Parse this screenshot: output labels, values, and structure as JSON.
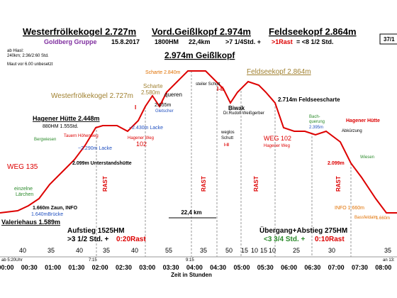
{
  "header": {
    "titles": [
      "Westerfrölkekogel 2.727m",
      "Vord.Geißlkopf 2.974m",
      "Feldseekopf 2.864m"
    ],
    "info": [
      "Goldberg Gruppe",
      "15.8.2017",
      "1800HM",
      "22,4km",
      ">7 1/4Std. +",
      ">1Rast",
      "= <8 1/2 Std."
    ],
    "page_number": "37/1"
  },
  "notes": [
    "ab Hiasl:",
    "240km; 2:36/2:60 Std.",
    "Maut vor 6.00 unbesetzt"
  ],
  "labels": [
    "2.974m Geißlkopf",
    "Scharte 2.840m",
    "Feldseekopf 2.864m",
    "Westerfrölkekogel 2.727m",
    "Scharte",
    "2.580m",
    "queren",
    "steiler Schutt",
    "I-II",
    "2.655m",
    "Gletscher",
    "2.714m  Feldseescharte",
    "Biwak",
    "Dr.Rudolf Weißgerber",
    "Hagener Hütte 2.448m",
    "880HM 1.55Std.",
    "~2.430m Lacke",
    "Hagener Weg",
    "102",
    "~2.290m Lacke",
    "Tauern Höhenweg",
    "Bergwiesen",
    "2.099m Unterstandshütte",
    "WEG 135",
    "einzelne",
    "Lärchen",
    "1.660m Zaun, INFO",
    "1.640mBrücke",
    "Valeriehaus 1.589m",
    "weglos",
    "Schutt",
    "I-II",
    "WEG 102",
    "Hagener Weg",
    "Bach-",
    "querung",
    "2.395m",
    "Hagener Hütte",
    "Abkürzung",
    "2.099m",
    "Wiesen",
    "INFO 1.660m",
    "Bassfeldalm",
    "1.660m",
    "I",
    "I"
  ],
  "rast": [
    "RAST",
    "RAST",
    "RAST",
    "RAST"
  ],
  "summary": {
    "distance": "22,4 km",
    "ascent": "Aufstieg 1525HM",
    "ascent_time": ">3 1/2 Std. +",
    "ascent_rest": "0:20Rast",
    "descent": "Übergang+Abstieg 275HM",
    "descent_time": "<3 3/4 Std. +",
    "descent_rest": "0:10Rast"
  },
  "durations": [
    40,
    35,
    40,
    35,
    40,
    55,
    35,
    50,
    15,
    10,
    15,
    10,
    25,
    30,
    35
  ],
  "clock": [
    "ab 5:20Uhr",
    "7:15",
    "9:15",
    "an 13:"
  ],
  "time_ticks": [
    "00:00",
    "00:30",
    "01:00",
    "01:30",
    "02:00",
    "02:30",
    "03:00",
    "03:30",
    "04:00",
    "04:30",
    "05:00",
    "05:30",
    "06:00",
    "06:30",
    "07:00",
    "07:30",
    "08:00"
  ],
  "x_axis_title": "Zeit in Stunden"
}
